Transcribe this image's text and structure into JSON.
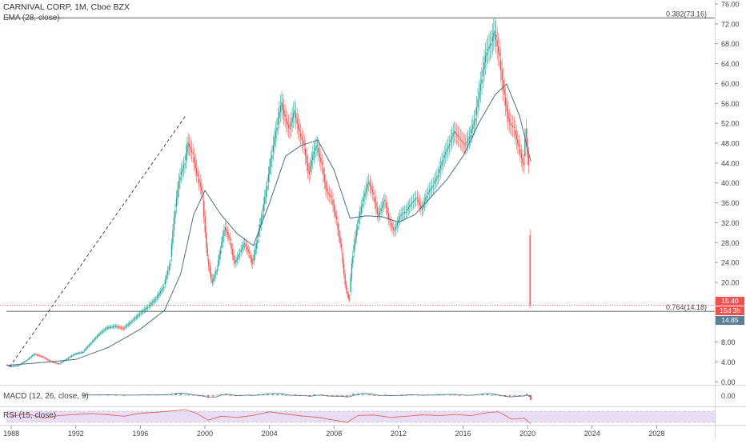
{
  "legend": {
    "symbol": "CARNIVAL CORP, 1M, Cboe BZX",
    "ema": "EMA (28, close)",
    "macd": "MACD (12, 26, close, 9)",
    "rsi": "RSI (15, close)"
  },
  "badges": {
    "last_price": "15.40",
    "countdown": "15d 3h",
    "ema_value": "14.85"
  },
  "colors": {
    "up": "#26a69a",
    "down": "#ef5350",
    "ema": "#4a6f8a",
    "rsi": "#e0675b",
    "hline": "#333333",
    "price_line": "#ef5350"
  },
  "chart_data": {
    "type": "candlestick",
    "title": "CARNIVAL CORP, 1M, Cboe BZX",
    "x_axis": {
      "ticks": [
        "1988",
        "1992",
        "1996",
        "2000",
        "2004",
        "2008",
        "2012",
        "2016",
        "2020",
        "2024",
        "2028"
      ],
      "range": [
        1987.5,
        2031.6
      ]
    },
    "y_axis": {
      "ticks": [
        "0.00",
        "4.00",
        "8.00",
        "12.00",
        "16.00",
        "20.00",
        "24.00",
        "28.00",
        "32.00",
        "36.00",
        "40.00",
        "44.00",
        "48.00",
        "52.00",
        "56.00",
        "60.00",
        "64.00",
        "68.00",
        "72.00",
        "76.00"
      ],
      "range": [
        -0.6,
        76.8
      ]
    },
    "series": [
      {
        "name": "",
        "type": "close",
        "x": [
          1987.7,
          1988.0,
          1988.5,
          1989.0,
          1989.5,
          1990.0,
          1990.5,
          1991.0,
          1991.5,
          1992.0,
          1992.5,
          1993.0,
          1993.5,
          1994.0,
          1994.5,
          1995.0,
          1995.5,
          1996.0,
          1996.5,
          1997.0,
          1997.5,
          1997.9,
          1998.2,
          1998.5,
          1998.8,
          1999.0,
          1999.3,
          1999.6,
          1999.9,
          2000.2,
          2000.5,
          2000.8,
          2001.0,
          2001.3,
          2001.6,
          2001.9,
          2002.2,
          2002.5,
          2002.8,
          2003.0,
          2003.3,
          2003.6,
          2003.9,
          2004.2,
          2004.5,
          2004.8,
          2005.0,
          2005.3,
          2005.6,
          2005.9,
          2006.2,
          2006.5,
          2006.8,
          2007.0,
          2007.3,
          2007.6,
          2007.9,
          2008.2,
          2008.5,
          2008.8,
          2009.0,
          2009.2,
          2009.5,
          2009.8,
          2010.2,
          2010.5,
          2010.8,
          2011.2,
          2011.5,
          2011.8,
          2012.2,
          2012.5,
          2012.8,
          2013.2,
          2013.5,
          2013.8,
          2014.2,
          2014.5,
          2014.8,
          2015.2,
          2015.5,
          2015.8,
          2016.2,
          2016.5,
          2016.8,
          2017.2,
          2017.5,
          2017.8,
          2018.0,
          2018.3,
          2018.6,
          2018.9,
          2019.2,
          2019.5,
          2019.8,
          2019.95,
          2020.1,
          2020.2
        ],
        "values": [
          3.5,
          3.1,
          3.3,
          4.3,
          5.6,
          5.0,
          4.1,
          3.6,
          4.6,
          5.6,
          6.0,
          7.8,
          9.6,
          10.9,
          11.2,
          10.7,
          12.1,
          13.6,
          15.0,
          16.6,
          19.1,
          23.8,
          34.4,
          41.3,
          43.9,
          48.1,
          45.8,
          41.3,
          38.0,
          25.3,
          19.9,
          22.6,
          26.3,
          31.1,
          28.5,
          23.8,
          25.8,
          27.9,
          25.8,
          23.7,
          28.5,
          33.6,
          39.4,
          45.6,
          51.1,
          56.2,
          53.3,
          50.8,
          54.6,
          50.3,
          47.6,
          41.7,
          46.3,
          47.6,
          43.6,
          38.3,
          37.1,
          32.7,
          27.1,
          18.5,
          16.6,
          25.3,
          31.3,
          35.8,
          40.3,
          37.7,
          33.3,
          36.6,
          32.2,
          30.3,
          33.7,
          34.2,
          35.7,
          37.1,
          34.6,
          37.5,
          39.6,
          41.6,
          44.7,
          47.8,
          50.4,
          49.1,
          47.5,
          49.6,
          52.9,
          60.8,
          66.3,
          68.1,
          70.6,
          65.6,
          57.8,
          52.2,
          51.1,
          47.3,
          43.6,
          50.9,
          43.6,
          15.4
        ]
      },
      {
        "name": "EMA (28, close)",
        "type": "line",
        "x": [
          1987.7,
          1990.0,
          1992.0,
          1994.0,
          1996.0,
          1997.5,
          1998.5,
          1999.3,
          2000.0,
          2001.0,
          2002.0,
          2003.0,
          2004.0,
          2005.0,
          2006.0,
          2007.0,
          2008.0,
          2009.0,
          2010.0,
          2011.0,
          2012.0,
          2013.0,
          2014.0,
          2015.0,
          2016.0,
          2017.0,
          2018.0,
          2018.7,
          2019.5,
          2020.2
        ],
        "values": [
          3.3,
          3.9,
          4.5,
          6.9,
          10.6,
          14.4,
          21.7,
          33.6,
          38.5,
          33.6,
          29.8,
          27.4,
          35.9,
          45.4,
          47.6,
          48.6,
          42.6,
          32.9,
          33.4,
          33.2,
          32.1,
          33.6,
          37.1,
          40.7,
          45.4,
          52.2,
          57.8,
          59.9,
          53.5,
          44.3
        ]
      },
      {
        "name": "RSI (15, close)",
        "type": "line",
        "x": [
          1988.0,
          1989.0,
          1990.0,
          1991.0,
          1992.0,
          1993.0,
          1994.0,
          1995.0,
          1996.0,
          1997.0,
          1998.0,
          1998.8,
          1999.5,
          2000.2,
          2001.0,
          2002.0,
          2003.0,
          2004.0,
          2005.0,
          2006.0,
          2007.0,
          2008.0,
          2008.8,
          2009.5,
          2010.5,
          2011.5,
          2012.5,
          2013.5,
          2014.5,
          2015.5,
          2016.5,
          2017.5,
          2018.2,
          2019.0,
          2019.8,
          2020.2
        ],
        "values": [
          52,
          60,
          46,
          55,
          58,
          62,
          57,
          52,
          63,
          66,
          71,
          76,
          62,
          38,
          52,
          48,
          55,
          68,
          60,
          53,
          48,
          38,
          30,
          55,
          56,
          48,
          52,
          57,
          54,
          58,
          54,
          65,
          68,
          42,
          45,
          25
        ]
      }
    ],
    "horizontal_lines": [
      {
        "label": "0.382(73.16)",
        "value": 73.16
      },
      {
        "label": "0.764(14.18)",
        "value": 14.18
      }
    ],
    "price_line": {
      "value": 15.4
    },
    "trend_line": {
      "from": [
        1987.9,
        3.0
      ],
      "to": [
        1998.8,
        53.5
      ]
    }
  }
}
